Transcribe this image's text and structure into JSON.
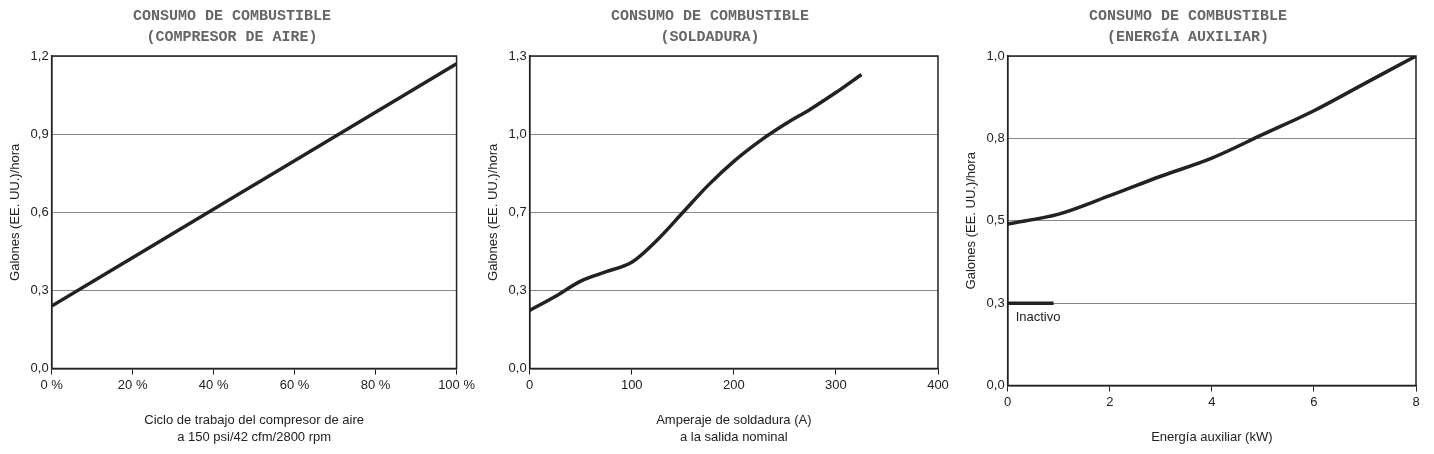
{
  "chart_data": [
    {
      "type": "line",
      "title": "CONSUMO DE COMBUSTIBLE\n(COMPRESOR DE AIRE)",
      "xlabel": "Ciclo de trabajo del compresor de aire\na 150 psi/42 cfm/2800 rpm",
      "ylabel": "Galones (EE. UU.)/hora",
      "xlim": [
        0,
        100
      ],
      "xticks": [
        {
          "value": 0,
          "label": "0 %"
        },
        {
          "value": 20,
          "label": "20 %"
        },
        {
          "value": 40,
          "label": "40 %"
        },
        {
          "value": 60,
          "label": "60 %"
        },
        {
          "value": 80,
          "label": "80 %"
        },
        {
          "value": 100,
          "label": "100 %"
        }
      ],
      "ylim": [
        0,
        1.2
      ],
      "yticks": [
        {
          "value": 0,
          "label": "0,0"
        },
        {
          "value": 0.3,
          "label": "0,3"
        },
        {
          "value": 0.6,
          "label": "0,6"
        },
        {
          "value": 0.9,
          "label": "0,9"
        },
        {
          "value": 1.2,
          "label": "1,2"
        }
      ],
      "grid": "y",
      "legend": false,
      "marker": "none",
      "line_style": "solid",
      "series": [
        {
          "color": "#222222",
          "x": [
            0,
            100
          ],
          "values": [
            0.24,
            1.17
          ]
        }
      ]
    },
    {
      "type": "line",
      "title": "CONSUMO DE COMBUSTIBLE\n(SOLDADURA)",
      "xlabel": "Amperaje de soldadura (A)\na la salida nominal",
      "ylabel": "Galones (EE. UU.)/hora",
      "xlim": [
        0,
        400
      ],
      "xticks": [
        0,
        100,
        200,
        300,
        400
      ],
      "ylim": [
        0,
        1.3
      ],
      "yticks": [
        {
          "value": 0,
          "label": "0,0"
        },
        {
          "value": 0.325,
          "label": "0,3"
        },
        {
          "value": 0.65,
          "label": "0,7"
        },
        {
          "value": 0.975,
          "label": "1,0"
        },
        {
          "value": 1.3,
          "label": "1,3"
        }
      ],
      "grid": "y",
      "legend": false,
      "marker": "none",
      "line_style": "solid",
      "series": [
        {
          "color": "#222222",
          "x": [
            0,
            25,
            50,
            75,
            100,
            125,
            150,
            175,
            200,
            225,
            250,
            275,
            300,
            325
          ],
          "values": [
            0.242,
            0.3,
            0.364,
            0.403,
            0.442,
            0.535,
            0.649,
            0.763,
            0.862,
            0.945,
            1.016,
            1.079,
            1.148,
            1.223
          ]
        }
      ]
    },
    {
      "type": "line",
      "title": "CONSUMO DE COMBUSTIBLE\n(ENERGÍA AUXILIAR)",
      "xlabel": "Energía auxiliar (kW)",
      "ylabel": "Galones (EE. UU.)/hora",
      "xlim": [
        0,
        8
      ],
      "xticks": [
        0,
        2,
        4,
        6,
        8
      ],
      "ylim": [
        0,
        1
      ],
      "yticks": [
        {
          "value": 0,
          "label": "0,0"
        },
        {
          "value": 0.25,
          "label": "0,3"
        },
        {
          "value": 0.5,
          "label": "0,5"
        },
        {
          "value": 0.75,
          "label": "0,8"
        },
        {
          "value": 1,
          "label": "1,0"
        }
      ],
      "grid": "y",
      "legend": false,
      "marker": "none",
      "line_style": "solid",
      "annotations": [
        {
          "text": "Inactivo",
          "x": 0,
          "y": 0.25
        }
      ],
      "series": [
        {
          "color": "#222222",
          "x": [
            0,
            1,
            2,
            3,
            4,
            5,
            6,
            7,
            8
          ],
          "values": [
            0.49,
            0.52,
            0.576,
            0.635,
            0.69,
            0.762,
            0.834,
            0.917,
            1.0
          ]
        },
        {
          "color": "#222222",
          "x": [
            0,
            0.9
          ],
          "values": [
            0.25,
            0.25
          ]
        }
      ]
    }
  ]
}
